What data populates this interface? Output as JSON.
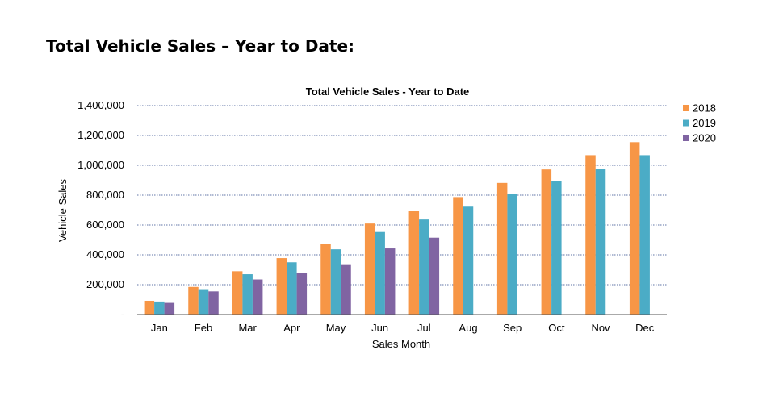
{
  "heading": "Total Vehicle Sales – Year to Date:",
  "chart_data": {
    "type": "bar",
    "title": "Total Vehicle Sales - Year to Date",
    "xlabel": "Sales Month",
    "ylabel": "Vehicle Sales",
    "ylim": [
      0,
      1400000
    ],
    "yticks": [
      0,
      200000,
      400000,
      600000,
      800000,
      1000000,
      1200000,
      1400000
    ],
    "ytick_labels": [
      "-",
      "200,000",
      "400,000",
      "600,000",
      "800,000",
      "1,000,000",
      "1,200,000",
      "1,400,000"
    ],
    "grid": true,
    "legend_position": "top-right",
    "categories": [
      "Jan",
      "Feb",
      "Mar",
      "Apr",
      "May",
      "Jun",
      "Jul",
      "Aug",
      "Sep",
      "Oct",
      "Nov",
      "Dec"
    ],
    "series": [
      {
        "name": "2018",
        "color": "#f79646",
        "values": [
          92000,
          185000,
          290000,
          378000,
          475000,
          610000,
          693000,
          787000,
          882000,
          972000,
          1068000,
          1155000
        ]
      },
      {
        "name": "2019",
        "color": "#4bacc6",
        "values": [
          87000,
          170000,
          270000,
          350000,
          437000,
          553000,
          637000,
          723000,
          810000,
          893000,
          978000,
          1068000
        ]
      },
      {
        "name": "2020",
        "color": "#8064a2",
        "values": [
          78000,
          155000,
          235000,
          277000,
          337000,
          443000,
          515000,
          null,
          null,
          null,
          null,
          null
        ]
      }
    ]
  }
}
